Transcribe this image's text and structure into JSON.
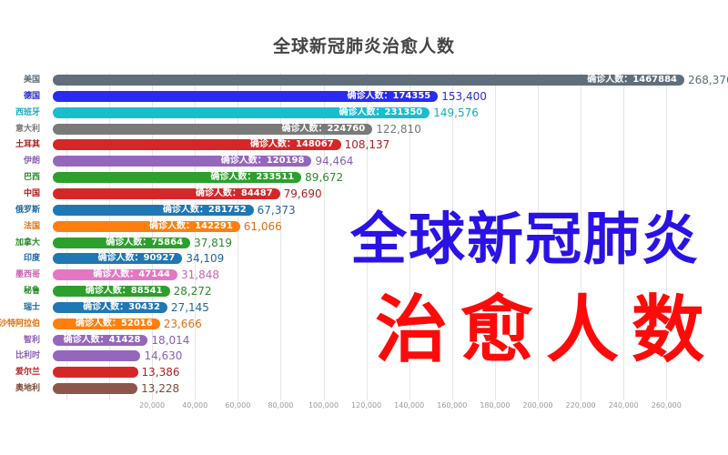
{
  "title": "全球新冠肺炎治愈人数",
  "overlay": {
    "line1": "全球新冠肺炎",
    "line2": "治愈人数",
    "line1_color": "#2a12e6",
    "line2_color": "#ff0a0a"
  },
  "chart_data": {
    "type": "bar",
    "orientation": "horizontal",
    "title": "全球新冠肺炎治愈人数",
    "xlabel": "",
    "ylabel": "",
    "inner_label_prefix": "确诊人数：",
    "xticks": [
      "20,000",
      "40,000",
      "60,000",
      "80,000",
      "100,000",
      "120,000",
      "140,000",
      "160,000",
      "180,000",
      "200,000",
      "220,000",
      "240,000",
      "260,000"
    ],
    "xlim": [
      0,
      270000
    ],
    "grid": true,
    "categories": [
      "美国",
      "德国",
      "西班牙",
      "意大利",
      "土耳其",
      "伊朗",
      "巴西",
      "中国",
      "俄罗斯",
      "法国",
      "加拿大",
      "印度",
      "墨西哥",
      "秘鲁",
      "瑞士",
      "沙特阿拉伯",
      "智利",
      "比利时",
      "爱尔兰",
      "奥地利"
    ],
    "series": [
      {
        "name": "治愈人数",
        "values": [
          268376,
          153400,
          149576,
          122810,
          108137,
          94464,
          89672,
          79690,
          67373,
          61066,
          37819,
          34109,
          31848,
          28272,
          27145,
          23666,
          18014,
          14630,
          13386,
          13228
        ]
      },
      {
        "name": "确诊人数",
        "values": [
          1467884,
          174355,
          231350,
          224760,
          148067,
          120198,
          233511,
          84487,
          281752,
          142291,
          75864,
          90927,
          47144,
          88541,
          30432,
          52016,
          41428,
          null,
          null,
          null
        ]
      }
    ],
    "value_labels": [
      "268,376",
      "153,400",
      "149,576",
      "122,810",
      "108,137",
      "94,464",
      "89,672",
      "79,690",
      "67,373",
      "61,066",
      "37,819",
      "34,109",
      "31,848",
      "28,272",
      "27,145",
      "23,666",
      "18,014",
      "14,630",
      "13,386",
      "13,228"
    ],
    "inner_labels": [
      "确诊人数：1467884",
      "确诊人数：174355",
      "确诊人数：231350",
      "确诊人数：224760",
      "确诊人数：148067",
      "确诊人数：120198",
      "确诊人数：233511",
      "确诊人数：84487",
      "确诊人数：281752",
      "确诊人数：142291",
      "确诊人数：75864",
      "确诊人数：90927",
      "确诊人数：47144",
      "确诊人数：88541",
      "确诊人数：30432",
      "确诊人数：52016",
      "确诊人数：41428",
      "",
      "",
      ""
    ],
    "colors": [
      "#5f6e7a",
      "#2b2bef",
      "#19bdcc",
      "#7a7a7a",
      "#d62728",
      "#9467bd",
      "#2ca02c",
      "#d62728",
      "#1f77b4",
      "#ff7f0e",
      "#2ca02c",
      "#1f77b4",
      "#e377c2",
      "#2ca02c",
      "#1f77b4",
      "#ff7f0e",
      "#9467bd",
      "#9467bd",
      "#d62728",
      "#8c564b"
    ],
    "label_colors": [
      "#5f6e7a",
      "#2b2bd0",
      "#19aabb",
      "#777777",
      "#b02020",
      "#8a5fb0",
      "#2a8a2a",
      "#b02020",
      "#1f66a0",
      "#e07010",
      "#2a8a2a",
      "#1f66a0",
      "#d060b0",
      "#2a8a2a",
      "#1f66a0",
      "#e07010",
      "#8a5fb0",
      "#8a5fb0",
      "#b02020",
      "#7a4a3a"
    ]
  }
}
